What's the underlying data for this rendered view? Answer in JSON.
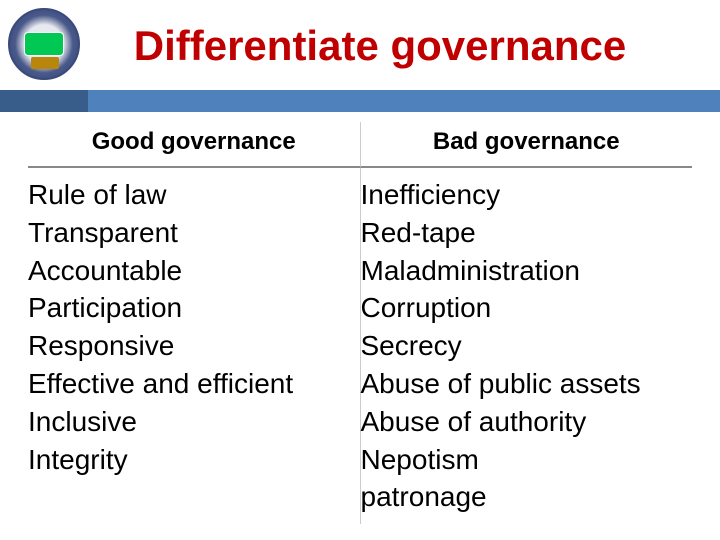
{
  "title": "Differentiate governance",
  "colors": {
    "title_color": "#c00000",
    "accent_bar": "#4f81bd",
    "accent_bar_small": "#385d8a",
    "background": "#ffffff",
    "text": "#000000",
    "divider": "#cccccc",
    "header_underline": "#888888"
  },
  "typography": {
    "title_fontsize": 42,
    "header_fontsize": 24,
    "body_fontsize": 28,
    "font_family": "Arial"
  },
  "table": {
    "columns": [
      {
        "header": "Good governance"
      },
      {
        "header": "Bad governance"
      }
    ],
    "left_items": [
      "Rule of law",
      "Transparent",
      "Accountable",
      "Participation",
      "Responsive",
      "Effective and efficient",
      "Inclusive",
      "Integrity"
    ],
    "right_items": [
      "Inefficiency",
      "Red-tape",
      "Maladministration",
      "Corruption",
      "Secrecy",
      "Abuse of public assets",
      "Abuse of authority",
      "Nepotism",
      "patronage"
    ]
  }
}
